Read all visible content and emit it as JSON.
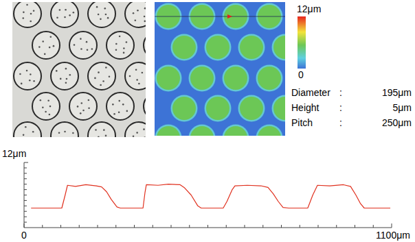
{
  "chart_data": {
    "type": "line",
    "x": [
      21,
      113,
      123,
      130,
      154,
      185,
      216,
      232,
      247,
      261,
      278,
      288,
      356,
      362,
      366,
      401,
      432,
      467,
      479,
      500,
      520,
      530,
      596,
      607,
      623,
      631,
      668,
      709,
      730,
      746,
      761,
      775,
      792,
      849,
      864,
      878,
      915,
      956,
      977,
      993,
      1007,
      1018,
      1096
    ],
    "values": [
      3.6,
      3.6,
      6.0,
      7.8,
      7.6,
      7.9,
      7.7,
      7.5,
      6.6,
      5.2,
      3.8,
      3.6,
      3.6,
      6.5,
      7.9,
      7.8,
      8.0,
      7.9,
      7.4,
      6.0,
      4.0,
      3.6,
      3.6,
      4.8,
      7.0,
      7.7,
      7.8,
      7.7,
      7.4,
      6.2,
      4.8,
      3.7,
      3.6,
      3.6,
      6.0,
      7.8,
      7.7,
      7.9,
      7.6,
      6.0,
      4.4,
      3.6,
      3.6
    ],
    "color": "#e0301e",
    "xlim": [
      0,
      1100
    ],
    "ylim": [
      0,
      12
    ],
    "xticks": [
      {
        "value": 0,
        "label": "0"
      },
      {
        "value": 1100,
        "label": "1100μm"
      }
    ],
    "yticks": [
      {
        "value": 12,
        "label": "12μm"
      }
    ]
  },
  "height_map": {
    "colorbar_range": [
      0,
      12
    ],
    "colorbar_ticks": [
      {
        "value": 12,
        "label": "12μm"
      },
      0
    ]
  },
  "specs": [
    {
      "label": "Diameter",
      "separator": ":",
      "value": "195μm"
    },
    {
      "label": "Height",
      "separator": ":",
      "value": "5μm"
    },
    {
      "label": "Pitch",
      "separator": ":",
      "value": "250μm"
    }
  ]
}
